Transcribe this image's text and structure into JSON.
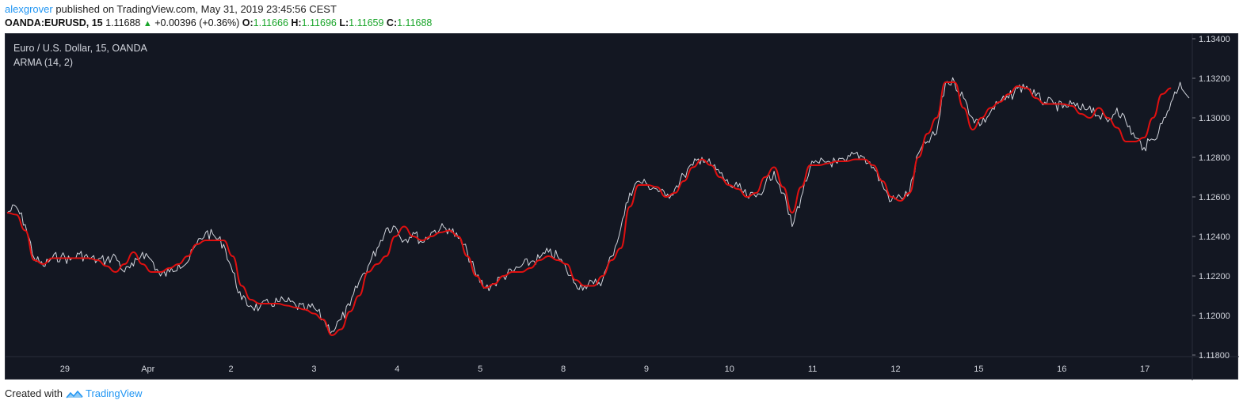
{
  "header": {
    "author": "alexgrover",
    "published_text": "published on TradingView.com, May 31, 2019 23:45:56 CEST"
  },
  "quote": {
    "symbol": "OANDA:EURUSD, 15",
    "last": "1.11688",
    "change": "+0.00396 (+0.36%)",
    "open_label": "O:",
    "open": "1.11666",
    "high_label": "H:",
    "high": "1.11696",
    "low_label": "L:",
    "low": "1.11659",
    "close_label": "C:",
    "close": "1.11688",
    "up_color": "#1aa52a"
  },
  "legend": {
    "instrument": "Euro / U.S. Dollar, 15, OANDA",
    "indicator": "ARMA (14, 2)"
  },
  "footer": {
    "created_with": "Created with",
    "brand": "TradingView",
    "icon": "tradingview-logo-icon"
  },
  "colors": {
    "background": "#131722",
    "price": "#d1d4dc",
    "arma": "#e01010",
    "axis_text": "#d1d4dc"
  },
  "chart_data": {
    "type": "line",
    "title": "Euro / U.S. Dollar, 15, OANDA",
    "xlabel": "",
    "ylabel": "",
    "ylim": [
      1.118,
      1.134
    ],
    "grid": false,
    "y_ticks": [
      "1.13400",
      "1.13200",
      "1.13000",
      "1.12800",
      "1.12600",
      "1.12400",
      "1.12200",
      "1.12000",
      "1.11800"
    ],
    "x_ticks": [
      "29",
      "Apr",
      "2",
      "3",
      "4",
      "5",
      "8",
      "9",
      "10",
      "11",
      "12",
      "15",
      "16",
      "17"
    ],
    "x_tick_index": [
      0.05,
      0.12,
      0.19,
      0.26,
      0.33,
      0.4,
      0.47,
      0.54,
      0.61,
      0.68,
      0.75,
      0.82,
      0.89,
      0.96
    ],
    "series": [
      {
        "name": "",
        "values": [
          1.1252,
          1.1255,
          1.1246,
          1.1229,
          1.1225,
          1.1229,
          1.123,
          1.1228,
          1.1231,
          1.1229,
          1.1228,
          1.1228,
          1.123,
          1.1222,
          1.1225,
          1.1232,
          1.1228,
          1.122,
          1.1222,
          1.1226,
          1.1227,
          1.1236,
          1.1242,
          1.124,
          1.1236,
          1.1222,
          1.1208,
          1.1205,
          1.1204,
          1.1206,
          1.1207,
          1.1207,
          1.1205,
          1.1203,
          1.1204,
          1.1198,
          1.1192,
          1.1198,
          1.1205,
          1.1217,
          1.1225,
          1.1234,
          1.1244,
          1.1245,
          1.1238,
          1.1242,
          1.1237,
          1.1242,
          1.1244,
          1.1244,
          1.1239,
          1.1232,
          1.122,
          1.1214,
          1.1216,
          1.122,
          1.1222,
          1.1225,
          1.1227,
          1.1229,
          1.1232,
          1.123,
          1.1223,
          1.1216,
          1.1215,
          1.1216,
          1.1218,
          1.123,
          1.1244,
          1.1262,
          1.1268,
          1.1266,
          1.1264,
          1.126,
          1.1264,
          1.1271,
          1.1276,
          1.128,
          1.1276,
          1.1272,
          1.1266,
          1.1265,
          1.126,
          1.126,
          1.1266,
          1.1273,
          1.1262,
          1.1245,
          1.126,
          1.1275,
          1.1277,
          1.1278,
          1.1277,
          1.1278,
          1.1282,
          1.128,
          1.1275,
          1.1266,
          1.1258,
          1.126,
          1.1262,
          1.1282,
          1.1288,
          1.1292,
          1.1318,
          1.1318,
          1.131,
          1.13,
          1.1297,
          1.1303,
          1.1308,
          1.131,
          1.1315,
          1.1316,
          1.1311,
          1.1308,
          1.1307,
          1.1305,
          1.1307,
          1.1304,
          1.1306,
          1.1301,
          1.1298,
          1.1305,
          1.1298,
          1.129,
          1.1285,
          1.1289,
          1.1297,
          1.1308,
          1.1318,
          1.131
        ]
      },
      {
        "name": "ARMA (14, 2)",
        "values": [
          1.1252,
          1.1251,
          1.1243,
          1.1228,
          1.1226,
          1.1229,
          1.1229,
          1.1229,
          1.1229,
          1.1229,
          1.1228,
          1.1225,
          1.1222,
          1.1226,
          1.1232,
          1.1226,
          1.1222,
          1.1222,
          1.1224,
          1.1226,
          1.123,
          1.1236,
          1.1238,
          1.1238,
          1.1238,
          1.123,
          1.1215,
          1.1208,
          1.1206,
          1.1206,
          1.1206,
          1.1205,
          1.1204,
          1.1203,
          1.1201,
          1.1198,
          1.119,
          1.1193,
          1.1202,
          1.121,
          1.1222,
          1.1226,
          1.123,
          1.124,
          1.1245,
          1.124,
          1.1238,
          1.124,
          1.1242,
          1.1243,
          1.124,
          1.123,
          1.122,
          1.1214,
          1.1216,
          1.122,
          1.1222,
          1.1222,
          1.1224,
          1.1228,
          1.123,
          1.1228,
          1.1226,
          1.1218,
          1.1215,
          1.1215,
          1.122,
          1.1228,
          1.1234,
          1.1255,
          1.1266,
          1.1266,
          1.1265,
          1.126,
          1.1262,
          1.1268,
          1.1275,
          1.1279,
          1.1276,
          1.127,
          1.1266,
          1.1264,
          1.126,
          1.1262,
          1.127,
          1.1275,
          1.1265,
          1.1252,
          1.1265,
          1.1276,
          1.1276,
          1.1277,
          1.1278,
          1.1278,
          1.1279,
          1.1279,
          1.1276,
          1.1268,
          1.126,
          1.1258,
          1.1262,
          1.128,
          1.1292,
          1.13,
          1.1318,
          1.1318,
          1.1305,
          1.1294,
          1.13,
          1.1305,
          1.1308,
          1.1312,
          1.1316,
          1.1315,
          1.131,
          1.1307,
          1.1307,
          1.1307,
          1.1306,
          1.1302,
          1.13,
          1.1305,
          1.13,
          1.1295,
          1.1288,
          1.1288,
          1.129,
          1.13,
          1.1312,
          1.1315
        ]
      }
    ]
  }
}
